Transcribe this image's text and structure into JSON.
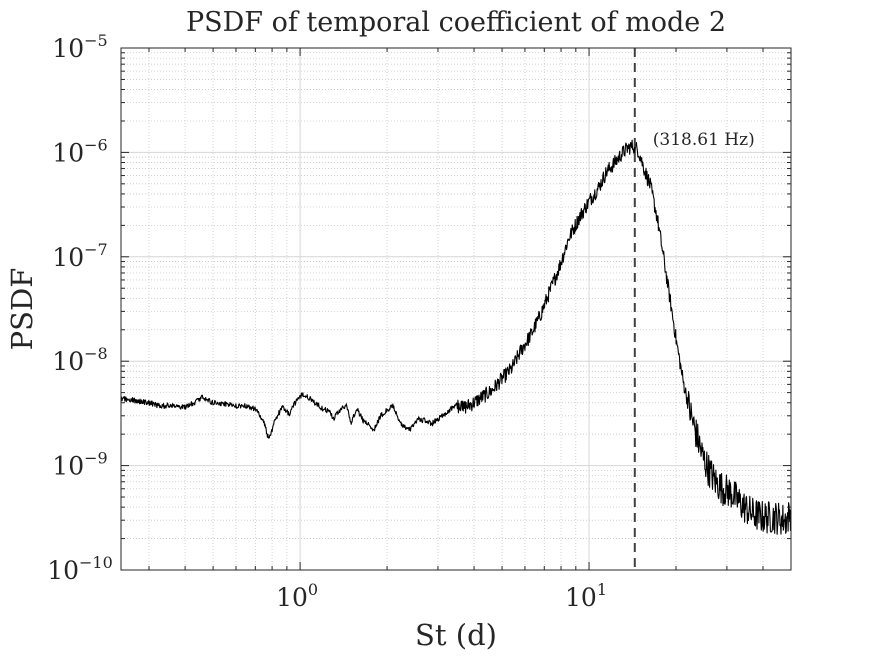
{
  "chart_data": {
    "type": "line",
    "title": "PSDF of temporal coefficient of mode 2",
    "xlabel": "St (d)",
    "ylabel": "PSDF",
    "xscale": "log",
    "yscale": "log",
    "xlim": [
      0.24,
      50
    ],
    "ylim": [
      1e-10,
      1e-05
    ],
    "grid": true,
    "minor_grid": true,
    "x_ticks": [
      {
        "value": 1,
        "base": "10",
        "exp": "0"
      },
      {
        "value": 10,
        "base": "10",
        "exp": "1"
      }
    ],
    "y_ticks": [
      {
        "value": 1e-10,
        "base": "10",
        "exp": "−10"
      },
      {
        "value": 1e-09,
        "base": "10",
        "exp": "−9"
      },
      {
        "value": 1e-08,
        "base": "10",
        "exp": "−8"
      },
      {
        "value": 1e-07,
        "base": "10",
        "exp": "−7"
      },
      {
        "value": 1e-06,
        "base": "10",
        "exp": "−6"
      },
      {
        "value": 1e-05,
        "base": "10",
        "exp": "−5"
      }
    ],
    "peak_marker": {
      "x": 14.4,
      "style": "dashed",
      "label": "(318.61 Hz)"
    },
    "series": [
      {
        "name": "PSDF",
        "color": "#000000",
        "x": [
          0.24,
          0.27,
          0.3,
          0.33,
          0.36,
          0.4,
          0.43,
          0.46,
          0.48,
          0.5,
          0.55,
          0.6,
          0.65,
          0.7,
          0.75,
          0.78,
          0.82,
          0.87,
          0.92,
          0.97,
          1.02,
          1.08,
          1.15,
          1.2,
          1.27,
          1.3,
          1.38,
          1.45,
          1.5,
          1.57,
          1.65,
          1.72,
          1.8,
          1.9,
          2.0,
          2.1,
          2.25,
          2.4,
          2.55,
          2.7,
          2.85,
          3.0,
          3.2,
          3.45,
          3.7,
          4.0,
          4.3,
          4.6,
          5.0,
          5.4,
          5.8,
          6.3,
          6.8,
          7.3,
          7.9,
          8.5,
          9.2,
          10.0,
          10.8,
          11.5,
          12.2,
          12.9,
          13.6,
          14.2,
          14.8,
          15.5,
          16.3,
          17.2,
          18.1,
          19.1,
          20.1,
          21.2,
          22.3,
          23.5,
          24.8,
          26.0,
          27.4,
          29.0,
          31.0,
          33.5,
          36.5,
          40.0,
          44.0,
          48.0,
          50.0
        ],
        "values": [
          4.4e-09,
          4.2e-09,
          4e-09,
          3.7e-09,
          3.8e-09,
          3.6e-09,
          4e-09,
          4.6e-09,
          4.2e-09,
          4e-09,
          3.9e-09,
          3.7e-09,
          3.7e-09,
          3.5e-09,
          2.6e-09,
          1.75e-09,
          2.8e-09,
          3.6e-09,
          3.1e-09,
          4.2e-09,
          4.8e-09,
          4.4e-09,
          3.8e-09,
          3.5e-09,
          3.3e-09,
          2.8e-09,
          3.4e-09,
          3.8e-09,
          2.5e-09,
          3.6e-09,
          2.7e-09,
          2.5e-09,
          2.2e-09,
          3e-09,
          3.4e-09,
          3.7e-09,
          2.4e-09,
          2.2e-09,
          2.8e-09,
          2.7e-09,
          2.5e-09,
          2.8e-09,
          3.2e-09,
          3.8e-09,
          3.6e-09,
          4e-09,
          4.6e-09,
          5.2e-09,
          6.8e-09,
          8.5e-09,
          1.25e-08,
          1.8e-08,
          2.8e-08,
          4.6e-08,
          8e-08,
          1.5e-07,
          2.3e-07,
          3.4e-07,
          4.6e-07,
          6.5e-07,
          7.8e-07,
          9.5e-07,
          1.1e-06,
          1.15e-06,
          1.05e-06,
          7e-07,
          4.8e-07,
          2.4e-07,
          1e-07,
          3.8e-08,
          1.5e-08,
          6.3e-09,
          3.4e-09,
          2e-09,
          1.2e-09,
          9e-10,
          7e-10,
          6e-10,
          5.5e-10,
          4.3e-10,
          3.5e-10,
          3.2e-10,
          3.2e-10,
          3e-10,
          3.5e-10
        ]
      }
    ]
  }
}
